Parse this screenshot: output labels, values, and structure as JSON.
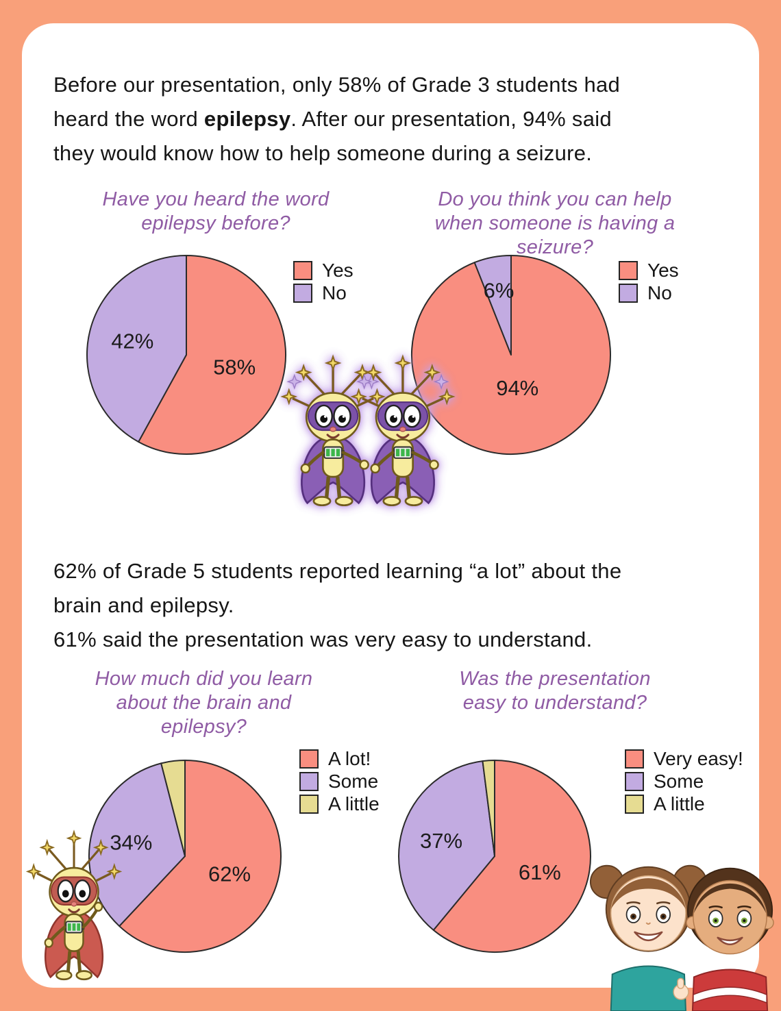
{
  "page": {
    "background_color": "#F9A07A",
    "card_color": "#FFFFFF"
  },
  "intro": {
    "before": "Before our presentation, only 58% of Grade 3 students had\nheard the word ",
    "bold": "epilepsy",
    "after": ". After our presentation, 94% said\nthey would know how to help someone during a seizure."
  },
  "middle": {
    "text": "62% of Grade 5 students reported learning “a lot” about the\nbrain and epilepsy.\n61% said the presentation was very easy to understand."
  },
  "colors": {
    "heading_purple": "#8F5BA4",
    "text_dark": "#161616",
    "pie_salmon": "#F98E80",
    "pie_purple": "#C2ABE1",
    "pie_yellow": "#E6DC92"
  },
  "illustrations": {
    "center": "two-neuron-superhero-mascots-holding-hands",
    "bottom_left": "neuron-superhero-mascot-red-cape",
    "bottom_right": "two-smiling-children"
  },
  "chart_data": [
    {
      "type": "pie",
      "title": "Have you heard the word\nepilepsy before?",
      "labels": [
        "Yes",
        "No"
      ],
      "values": [
        58,
        42
      ],
      "colors": [
        "#F98E80",
        "#C2ABE1"
      ],
      "label_r": [
        0.5,
        0.56
      ],
      "legend_position": "right"
    },
    {
      "type": "pie",
      "title": "Do you think you can help\nwhen someone is having a\nseizure?",
      "labels": [
        "Yes",
        "No"
      ],
      "values": [
        94,
        6
      ],
      "colors": [
        "#F98E80",
        "#C2ABE1"
      ],
      "label_r": [
        0.34,
        0.66
      ],
      "legend_position": "right"
    },
    {
      "type": "pie",
      "title": "How much did you learn\nabout the brain and\nepilepsy?",
      "labels": [
        "A lot!",
        "Some",
        "A little"
      ],
      "values": [
        62,
        34,
        4
      ],
      "colors": [
        "#F98E80",
        "#C2ABE1",
        "#E6DC92"
      ],
      "label_r": [
        0.5,
        0.58,
        0.6
      ],
      "legend_position": "right"
    },
    {
      "type": "pie",
      "title": "Was the presentation\neasy to understand?",
      "labels": [
        "Very easy!",
        "Some",
        "A little"
      ],
      "values": [
        61,
        37,
        2
      ],
      "colors": [
        "#F98E80",
        "#C2ABE1",
        "#E6DC92"
      ],
      "label_r": [
        0.5,
        0.58,
        0.6
      ],
      "legend_position": "right"
    }
  ]
}
